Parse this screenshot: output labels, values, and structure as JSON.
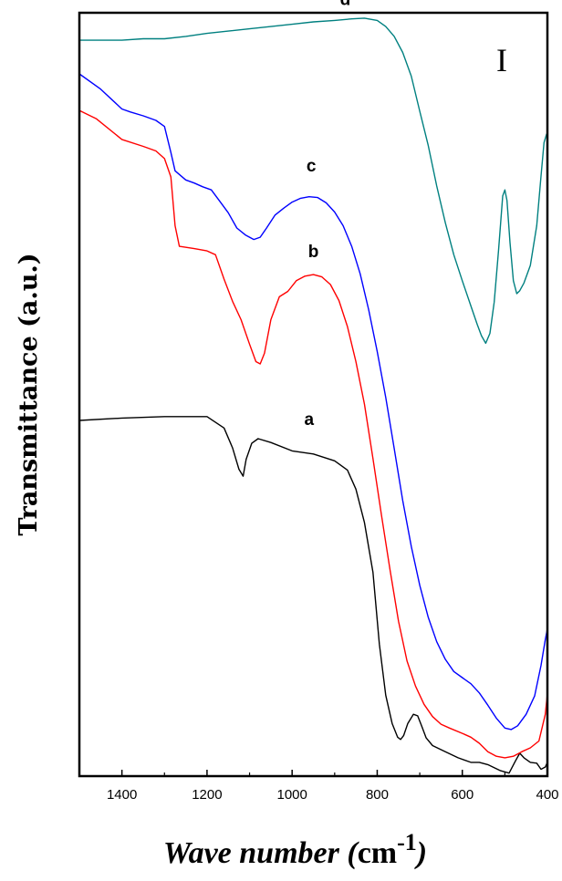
{
  "chart_data": {
    "type": "line",
    "title": "",
    "panel_label": "I",
    "xlabel": {
      "text": "Wave number (",
      "unit": "cm",
      "sup": "-1",
      "close": ")"
    },
    "ylabel": "Transmittance (a.u.)",
    "xlim": [
      1500,
      400
    ],
    "ylim": [
      0,
      100
    ],
    "x_ticks": [
      1400,
      1200,
      1000,
      800,
      600,
      400
    ],
    "grid": false,
    "series": [
      {
        "name": "a",
        "color": "#000000",
        "points": [
          [
            1500,
            46.6
          ],
          [
            1400,
            46.9
          ],
          [
            1300,
            47.1
          ],
          [
            1200,
            47.1
          ],
          [
            1160,
            45.6
          ],
          [
            1140,
            43.0
          ],
          [
            1125,
            40.2
          ],
          [
            1115,
            39.3
          ],
          [
            1108,
            41.5
          ],
          [
            1095,
            43.6
          ],
          [
            1080,
            44.2
          ],
          [
            1050,
            43.7
          ],
          [
            1000,
            42.6
          ],
          [
            950,
            42.2
          ],
          [
            900,
            41.3
          ],
          [
            870,
            40.1
          ],
          [
            850,
            37.6
          ],
          [
            830,
            33.2
          ],
          [
            810,
            26.7
          ],
          [
            795,
            17.3
          ],
          [
            780,
            10.6
          ],
          [
            765,
            6.9
          ],
          [
            752,
            5.1
          ],
          [
            745,
            4.8
          ],
          [
            738,
            5.3
          ],
          [
            728,
            6.9
          ],
          [
            715,
            8.1
          ],
          [
            705,
            7.9
          ],
          [
            695,
            6.5
          ],
          [
            685,
            5.0
          ],
          [
            670,
            4.0
          ],
          [
            640,
            3.2
          ],
          [
            610,
            2.4
          ],
          [
            580,
            1.8
          ],
          [
            560,
            1.8
          ],
          [
            540,
            1.5
          ],
          [
            510,
            0.7
          ],
          [
            490,
            0.4
          ],
          [
            475,
            2.0
          ],
          [
            465,
            3.0
          ],
          [
            455,
            2.4
          ],
          [
            440,
            1.8
          ],
          [
            425,
            1.7
          ],
          [
            415,
            0.9
          ],
          [
            405,
            1.2
          ],
          [
            400,
            1.8
          ]
        ],
        "label": {
          "text": "a",
          "x": 960,
          "y": 46.0
        }
      },
      {
        "name": "b",
        "color": "#ff0000",
        "points": [
          [
            1500,
            87.2
          ],
          [
            1460,
            86.1
          ],
          [
            1400,
            83.4
          ],
          [
            1350,
            82.5
          ],
          [
            1320,
            81.9
          ],
          [
            1300,
            80.9
          ],
          [
            1285,
            78.5
          ],
          [
            1275,
            72.1
          ],
          [
            1265,
            69.4
          ],
          [
            1230,
            69.1
          ],
          [
            1200,
            68.8
          ],
          [
            1180,
            68.3
          ],
          [
            1160,
            65.1
          ],
          [
            1140,
            62.2
          ],
          [
            1120,
            59.8
          ],
          [
            1100,
            56.6
          ],
          [
            1085,
            54.3
          ],
          [
            1075,
            54.0
          ],
          [
            1065,
            55.4
          ],
          [
            1050,
            59.8
          ],
          [
            1030,
            62.8
          ],
          [
            1010,
            63.5
          ],
          [
            990,
            64.9
          ],
          [
            970,
            65.5
          ],
          [
            950,
            65.7
          ],
          [
            930,
            65.4
          ],
          [
            910,
            64.4
          ],
          [
            890,
            62.3
          ],
          [
            870,
            58.9
          ],
          [
            850,
            54.3
          ],
          [
            830,
            48.7
          ],
          [
            810,
            41.6
          ],
          [
            790,
            34.2
          ],
          [
            770,
            27.1
          ],
          [
            750,
            20.3
          ],
          [
            730,
            15.1
          ],
          [
            710,
            11.8
          ],
          [
            690,
            9.4
          ],
          [
            670,
            7.8
          ],
          [
            650,
            6.8
          ],
          [
            630,
            6.3
          ],
          [
            600,
            5.6
          ],
          [
            580,
            5.1
          ],
          [
            560,
            4.3
          ],
          [
            540,
            3.2
          ],
          [
            520,
            2.6
          ],
          [
            500,
            2.4
          ],
          [
            480,
            2.6
          ],
          [
            460,
            3.2
          ],
          [
            440,
            3.7
          ],
          [
            420,
            4.6
          ],
          [
            405,
            8.1
          ],
          [
            400,
            10.8
          ]
        ],
        "label": {
          "text": "b",
          "x": 950,
          "y": 68.0
        }
      },
      {
        "name": "c",
        "color": "#0000ff",
        "points": [
          [
            1500,
            92.0
          ],
          [
            1450,
            90.0
          ],
          [
            1400,
            87.4
          ],
          [
            1380,
            87.0
          ],
          [
            1350,
            86.5
          ],
          [
            1320,
            85.9
          ],
          [
            1300,
            85.1
          ],
          [
            1285,
            81.7
          ],
          [
            1275,
            79.3
          ],
          [
            1250,
            78.1
          ],
          [
            1230,
            77.7
          ],
          [
            1210,
            77.2
          ],
          [
            1190,
            76.8
          ],
          [
            1170,
            75.3
          ],
          [
            1150,
            73.8
          ],
          [
            1130,
            71.8
          ],
          [
            1110,
            70.9
          ],
          [
            1090,
            70.3
          ],
          [
            1075,
            70.6
          ],
          [
            1060,
            71.8
          ],
          [
            1040,
            73.5
          ],
          [
            1020,
            74.4
          ],
          [
            1000,
            75.2
          ],
          [
            980,
            75.7
          ],
          [
            960,
            75.9
          ],
          [
            940,
            75.8
          ],
          [
            920,
            75.1
          ],
          [
            900,
            73.9
          ],
          [
            880,
            72.1
          ],
          [
            860,
            69.4
          ],
          [
            840,
            65.8
          ],
          [
            820,
            61.1
          ],
          [
            800,
            55.6
          ],
          [
            780,
            49.6
          ],
          [
            760,
            42.9
          ],
          [
            740,
            36.1
          ],
          [
            720,
            30.1
          ],
          [
            700,
            25.0
          ],
          [
            680,
            20.8
          ],
          [
            660,
            17.6
          ],
          [
            640,
            15.3
          ],
          [
            620,
            13.7
          ],
          [
            600,
            12.9
          ],
          [
            580,
            12.1
          ],
          [
            560,
            10.9
          ],
          [
            540,
            9.3
          ],
          [
            520,
            7.6
          ],
          [
            500,
            6.3
          ],
          [
            485,
            6.1
          ],
          [
            470,
            6.6
          ],
          [
            450,
            8.1
          ],
          [
            430,
            10.5
          ],
          [
            415,
            14.5
          ],
          [
            405,
            17.9
          ],
          [
            400,
            19.3
          ]
        ],
        "label": {
          "text": "c",
          "x": 955,
          "y": 79.2
        }
      },
      {
        "name": "d",
        "color": "#008080",
        "points": [
          [
            1500,
            96.4
          ],
          [
            1450,
            96.4
          ],
          [
            1400,
            96.4
          ],
          [
            1350,
            96.6
          ],
          [
            1300,
            96.6
          ],
          [
            1250,
            96.9
          ],
          [
            1200,
            97.3
          ],
          [
            1150,
            97.6
          ],
          [
            1100,
            97.9
          ],
          [
            1050,
            98.2
          ],
          [
            1000,
            98.5
          ],
          [
            950,
            98.8
          ],
          [
            900,
            99.0
          ],
          [
            860,
            99.2
          ],
          [
            830,
            99.3
          ],
          [
            800,
            99.0
          ],
          [
            780,
            98.2
          ],
          [
            760,
            96.9
          ],
          [
            740,
            94.8
          ],
          [
            720,
            91.7
          ],
          [
            700,
            87.1
          ],
          [
            680,
            82.6
          ],
          [
            660,
            77.3
          ],
          [
            640,
            72.5
          ],
          [
            620,
            68.3
          ],
          [
            600,
            64.9
          ],
          [
            580,
            61.6
          ],
          [
            565,
            59.2
          ],
          [
            555,
            57.7
          ],
          [
            545,
            56.7
          ],
          [
            535,
            58.0
          ],
          [
            525,
            62.1
          ],
          [
            515,
            68.8
          ],
          [
            505,
            76.0
          ],
          [
            500,
            76.8
          ],
          [
            495,
            75.4
          ],
          [
            488,
            69.9
          ],
          [
            480,
            64.9
          ],
          [
            472,
            63.2
          ],
          [
            465,
            63.6
          ],
          [
            455,
            64.6
          ],
          [
            440,
            66.9
          ],
          [
            425,
            72.1
          ],
          [
            415,
            78.6
          ],
          [
            408,
            83.0
          ],
          [
            402,
            84.1
          ],
          [
            400,
            83.9
          ]
        ],
        "label": {
          "text": "d",
          "x": 875,
          "y": 101.0
        }
      }
    ]
  }
}
